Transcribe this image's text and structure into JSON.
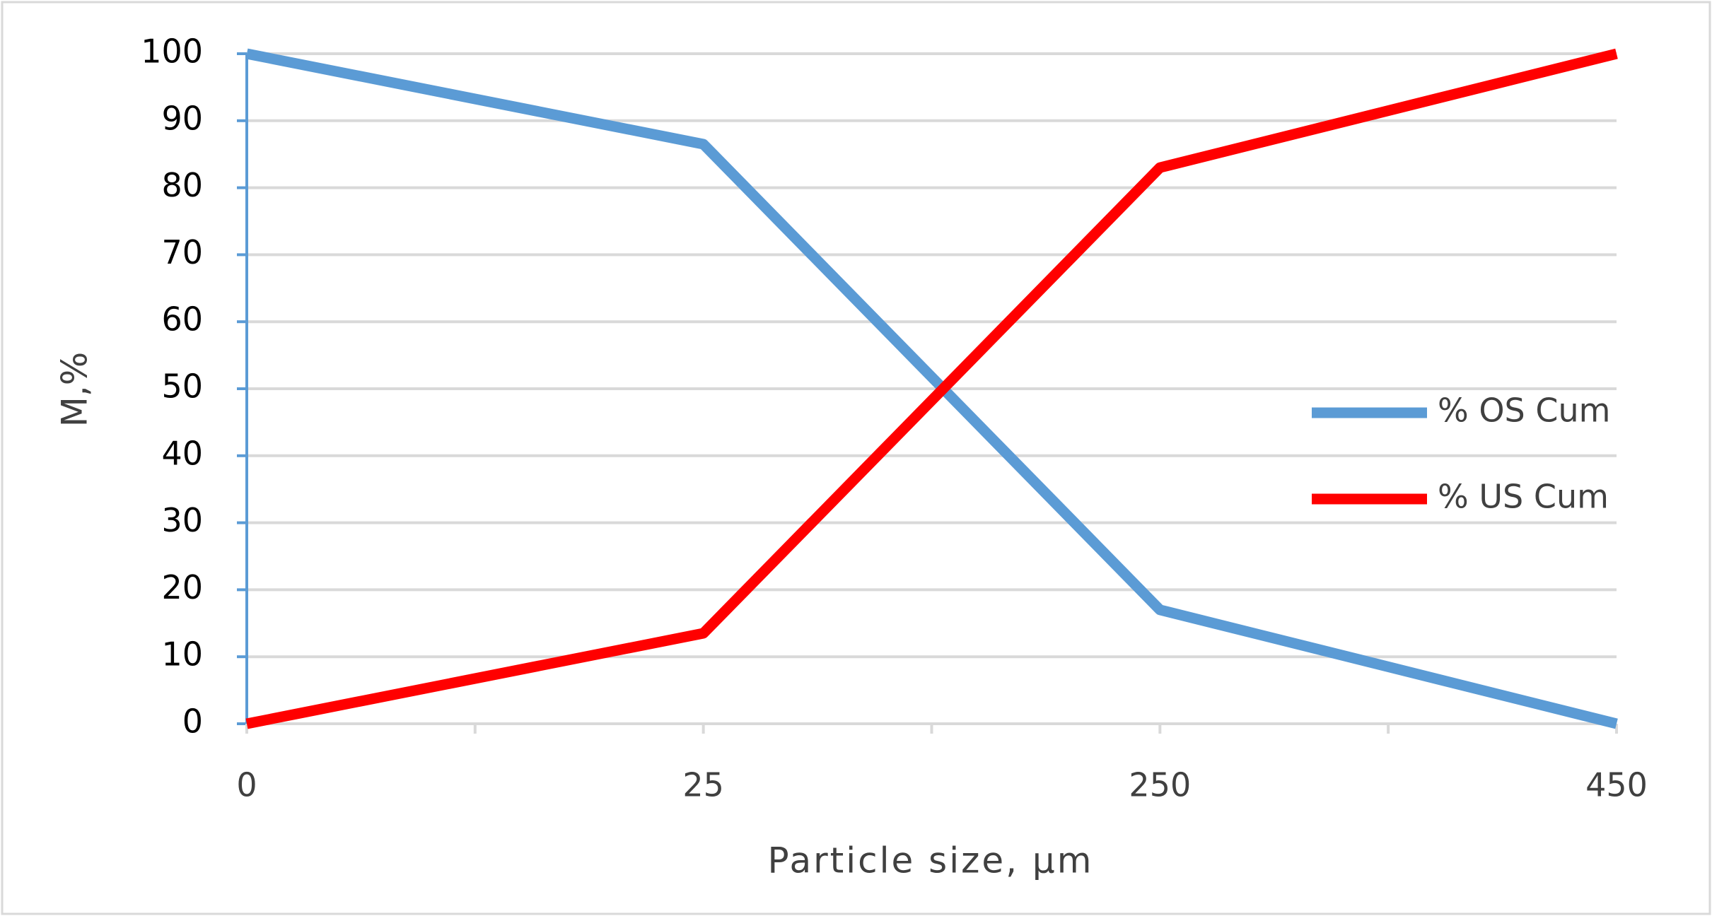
{
  "chart_data": {
    "type": "line",
    "x_label": "Particle size, µm",
    "y_label": "M,%",
    "categories": [
      "0",
      "25",
      "250",
      "450"
    ],
    "series": [
      {
        "name": "% OS Cum",
        "color": "#5b9bd5",
        "values": [
          100,
          86.5,
          17,
          0
        ]
      },
      {
        "name": "% US Cum",
        "color": "#ff0000",
        "values": [
          0,
          13.5,
          83,
          100
        ]
      }
    ],
    "ylim": [
      0,
      100
    ],
    "yticks": [
      0,
      10,
      20,
      30,
      40,
      50,
      60,
      70,
      80,
      90,
      100
    ],
    "grid": true,
    "legend": "right"
  }
}
